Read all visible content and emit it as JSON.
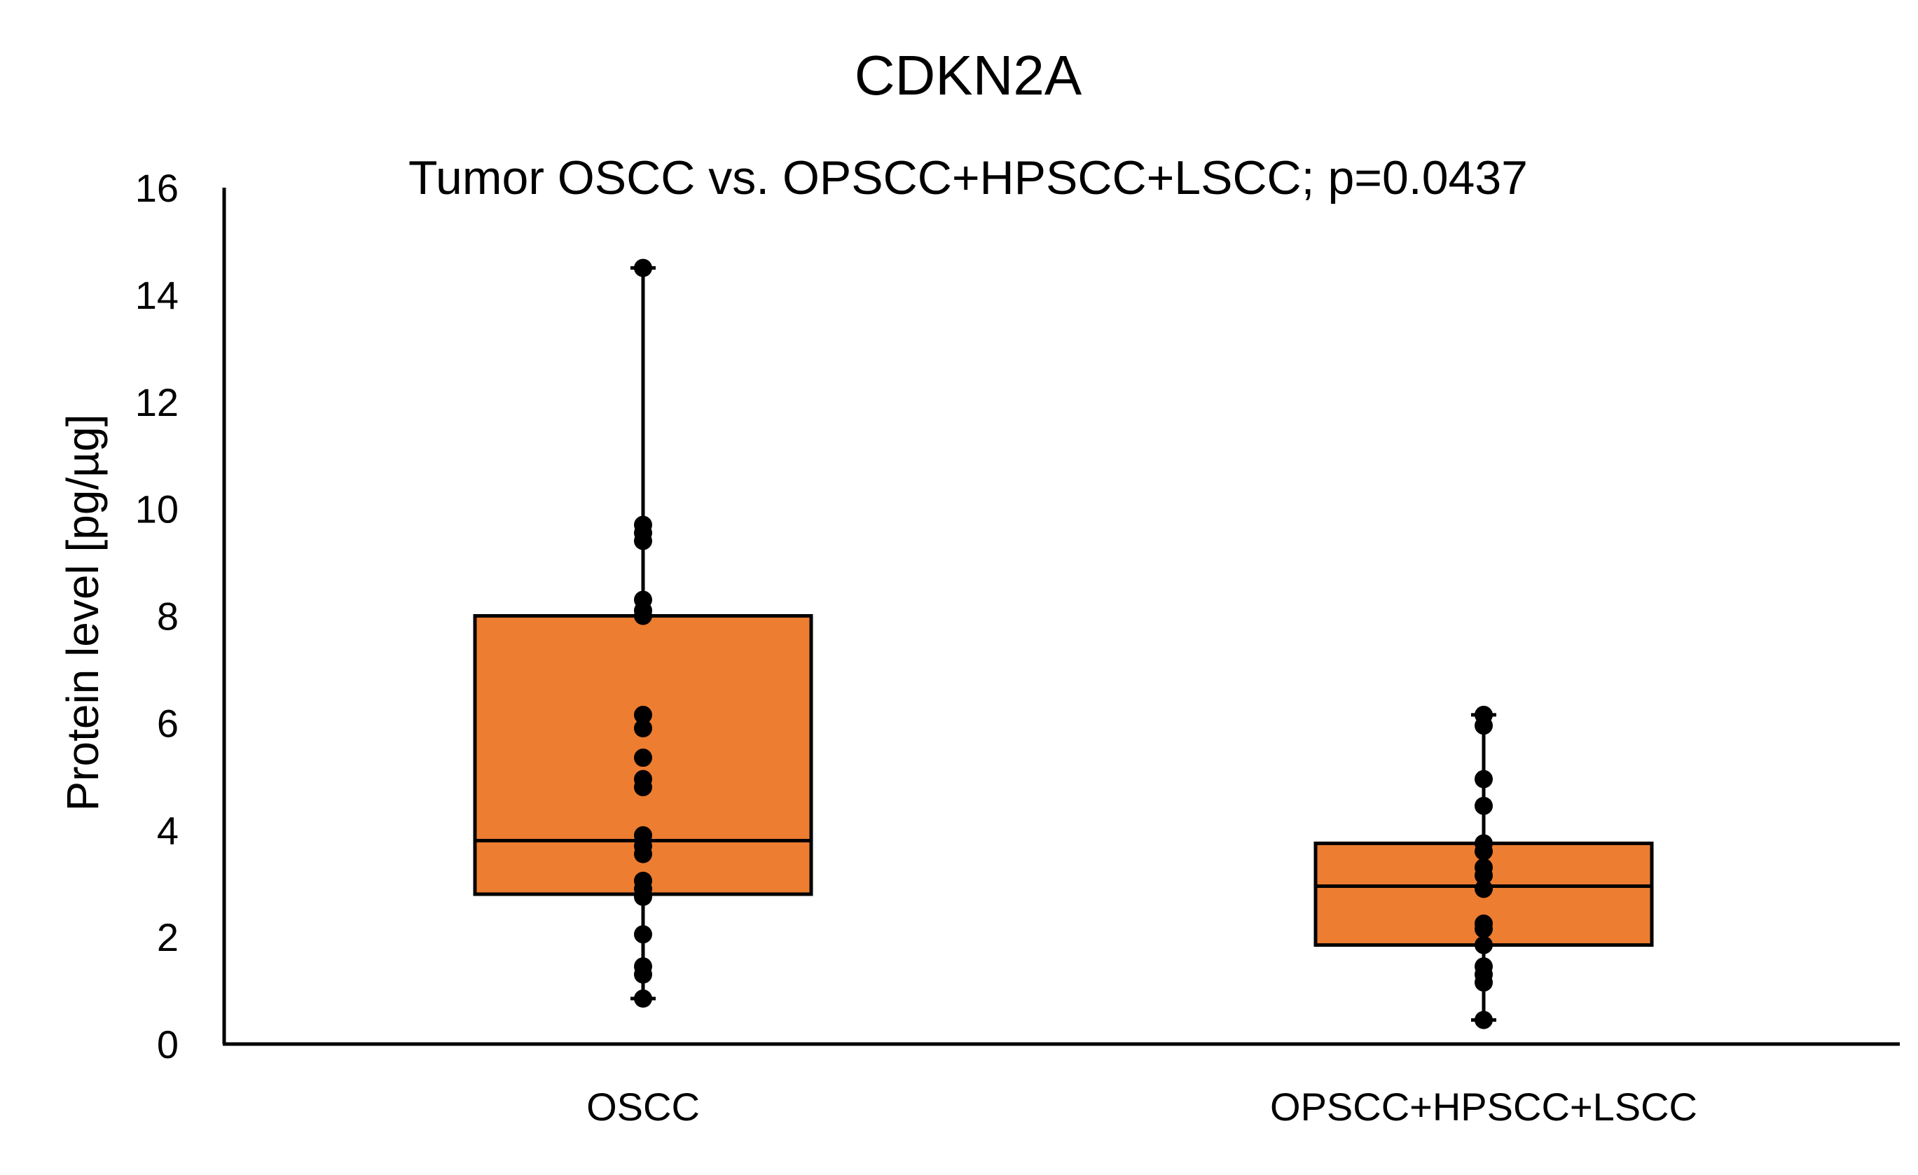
{
  "chart_data": {
    "type": "box",
    "title": "CDKN2A",
    "subtitle": "Tumor OSCC vs. OPSCC+HPSCC+LSCC; p=0.0437",
    "ylabel": "Protein level [pg/µg]",
    "xlabel": "",
    "ylim": [
      0,
      16
    ],
    "yticks": [
      0,
      2,
      4,
      6,
      8,
      10,
      12,
      14,
      16
    ],
    "grid": false,
    "legend": "none",
    "colors": {
      "box_fill": "#ED7D31",
      "stroke": "#000000",
      "points": "#000000"
    },
    "categories": [
      "OSCC",
      "OPSCC+HPSCC+LSCC"
    ],
    "boxes": [
      {
        "category": "OSCC",
        "min": 0.85,
        "q1": 2.8,
        "median": 3.8,
        "q3": 8.0,
        "max": 14.5,
        "points": [
          14.5,
          9.7,
          9.55,
          9.4,
          8.3,
          8.1,
          8.0,
          6.15,
          5.9,
          5.35,
          4.95,
          4.8,
          3.9,
          3.7,
          3.55,
          3.05,
          2.9,
          2.75,
          2.05,
          1.45,
          1.3,
          0.85
        ]
      },
      {
        "category": "OPSCC+HPSCC+LSCC",
        "min": 0.45,
        "q1": 1.85,
        "median": 2.95,
        "q3": 3.75,
        "max": 6.15,
        "points": [
          6.15,
          5.95,
          4.95,
          4.45,
          3.75,
          3.6,
          3.3,
          3.15,
          2.9,
          2.25,
          2.15,
          1.85,
          1.45,
          1.3,
          1.15,
          0.45
        ]
      }
    ]
  }
}
